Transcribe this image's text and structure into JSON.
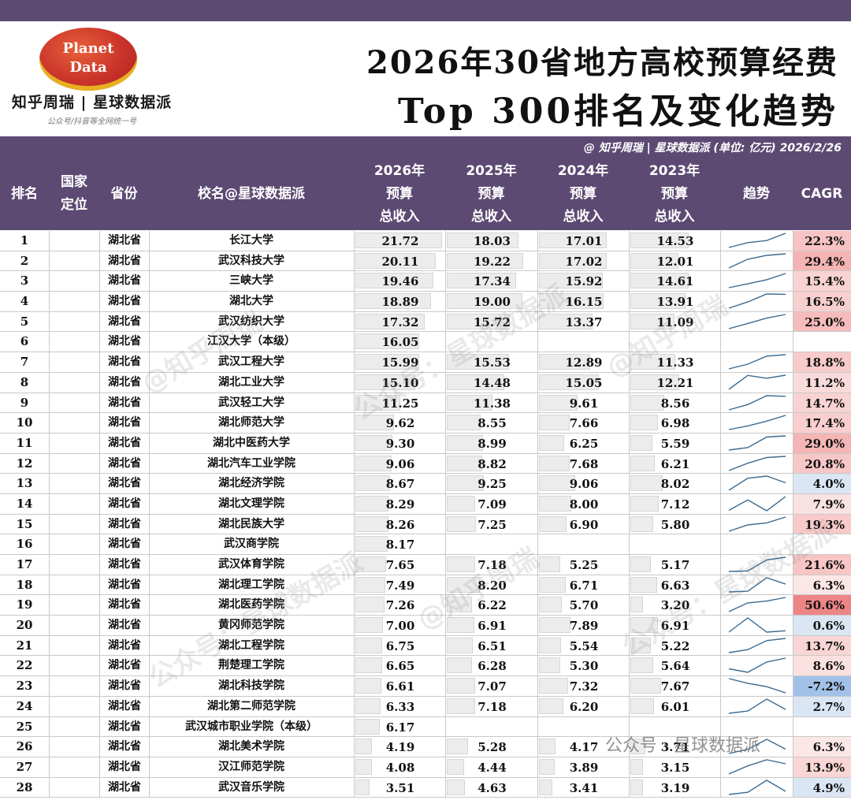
{
  "header": {
    "logo_line1": "Planet",
    "logo_line2": "Data",
    "brand": "知乎周瑞 | 星球数据派",
    "brand_sub": "公众号/抖音等全网统一号",
    "title_line1": "2026年30省地方高校预算经费",
    "title_line2": "Top 300排名及变化趋势",
    "credit": "@ 知乎周瑞 | 星球数据派 (单位: 亿元) 2026/2/26"
  },
  "columns": {
    "rank": "排名",
    "position": [
      "国家",
      "定位"
    ],
    "province": "省份",
    "name": "校名@星球数据派",
    "y2026": [
      "2026年",
      "预算",
      "总收入"
    ],
    "y2025": [
      "2025年",
      "预算",
      "总收入"
    ],
    "y2024": [
      "2024年",
      "预算",
      "总收入"
    ],
    "y2023": [
      "2023年",
      "预算",
      "总收入"
    ],
    "trend": "趋势",
    "cagr": "CAGR"
  },
  "colors": {
    "header_bg": "#5d4a73",
    "cagr_positive": "#f29a9a",
    "cagr_negative": "#8fb3e0"
  },
  "rows": [
    {
      "rank": "1",
      "province": "湖北省",
      "name": "长江大学",
      "y2026": "21.72",
      "y2025": "18.03",
      "y2024": "17.01",
      "y2023": "14.53",
      "cagr": "22.3%",
      "cagr_val": 22.3,
      "vals": [
        14.53,
        17.01,
        18.03,
        21.72
      ]
    },
    {
      "rank": "2",
      "province": "湖北省",
      "name": "武汉科技大学",
      "y2026": "20.11",
      "y2025": "19.22",
      "y2024": "17.02",
      "y2023": "12.01",
      "cagr": "29.4%",
      "cagr_val": 29.4,
      "vals": [
        12.01,
        17.02,
        19.22,
        20.11
      ]
    },
    {
      "rank": "3",
      "province": "湖北省",
      "name": "三峡大学",
      "y2026": "19.46",
      "y2025": "17.34",
      "y2024": "15.92",
      "y2023": "14.61",
      "cagr": "15.4%",
      "cagr_val": 15.4,
      "vals": [
        14.61,
        15.92,
        17.34,
        19.46
      ]
    },
    {
      "rank": "4",
      "province": "湖北省",
      "name": "湖北大学",
      "y2026": "18.89",
      "y2025": "19.00",
      "y2024": "16.15",
      "y2023": "13.91",
      "cagr": "16.5%",
      "cagr_val": 16.5,
      "vals": [
        13.91,
        16.15,
        19.0,
        18.89
      ]
    },
    {
      "rank": "5",
      "province": "湖北省",
      "name": "武汉纺织大学",
      "y2026": "17.32",
      "y2025": "15.72",
      "y2024": "13.37",
      "y2023": "11.09",
      "cagr": "25.0%",
      "cagr_val": 25.0,
      "vals": [
        11.09,
        13.37,
        15.72,
        17.32
      ]
    },
    {
      "rank": "6",
      "province": "湖北省",
      "name": "江汉大学（本级）",
      "y2026": "16.05",
      "y2025": "",
      "y2024": "",
      "y2023": "",
      "cagr": "",
      "cagr_val": null,
      "vals": []
    },
    {
      "rank": "7",
      "province": "湖北省",
      "name": "武汉工程大学",
      "y2026": "15.99",
      "y2025": "15.53",
      "y2024": "12.89",
      "y2023": "11.33",
      "cagr": "18.8%",
      "cagr_val": 18.8,
      "vals": [
        11.33,
        12.89,
        15.53,
        15.99
      ]
    },
    {
      "rank": "8",
      "province": "湖北省",
      "name": "湖北工业大学",
      "y2026": "15.10",
      "y2025": "14.48",
      "y2024": "15.05",
      "y2023": "12.21",
      "cagr": "11.2%",
      "cagr_val": 11.2,
      "vals": [
        12.21,
        15.05,
        14.48,
        15.1
      ]
    },
    {
      "rank": "9",
      "province": "湖北省",
      "name": "武汉轻工大学",
      "y2026": "11.25",
      "y2025": "11.38",
      "y2024": "9.61",
      "y2023": "8.56",
      "cagr": "14.7%",
      "cagr_val": 14.7,
      "vals": [
        8.56,
        9.61,
        11.38,
        11.25
      ]
    },
    {
      "rank": "10",
      "province": "湖北省",
      "name": "湖北师范大学",
      "y2026": "9.62",
      "y2025": "8.55",
      "y2024": "7.66",
      "y2023": "6.98",
      "cagr": "17.4%",
      "cagr_val": 17.4,
      "vals": [
        6.98,
        7.66,
        8.55,
        9.62
      ]
    },
    {
      "rank": "11",
      "province": "湖北省",
      "name": "湖北中医药大学",
      "y2026": "9.30",
      "y2025": "8.99",
      "y2024": "6.25",
      "y2023": "5.59",
      "cagr": "29.0%",
      "cagr_val": 29.0,
      "vals": [
        5.59,
        6.25,
        8.99,
        9.3
      ]
    },
    {
      "rank": "12",
      "province": "湖北省",
      "name": "湖北汽车工业学院",
      "y2026": "9.06",
      "y2025": "8.82",
      "y2024": "7.68",
      "y2023": "6.21",
      "cagr": "20.8%",
      "cagr_val": 20.8,
      "vals": [
        6.21,
        7.68,
        8.82,
        9.06
      ]
    },
    {
      "rank": "13",
      "province": "湖北省",
      "name": "湖北经济学院",
      "y2026": "8.67",
      "y2025": "9.25",
      "y2024": "9.06",
      "y2023": "8.02",
      "cagr": "4.0%",
      "cagr_val": 4.0,
      "vals": [
        8.02,
        9.06,
        9.25,
        8.67
      ]
    },
    {
      "rank": "14",
      "province": "湖北省",
      "name": "湖北文理学院",
      "y2026": "8.29",
      "y2025": "7.09",
      "y2024": "8.00",
      "y2023": "7.12",
      "cagr": "7.9%",
      "cagr_val": 7.9,
      "vals": [
        7.12,
        8.0,
        7.09,
        8.29
      ]
    },
    {
      "rank": "15",
      "province": "湖北省",
      "name": "湖北民族大学",
      "y2026": "8.26",
      "y2025": "7.25",
      "y2024": "6.90",
      "y2023": "5.80",
      "cagr": "19.3%",
      "cagr_val": 19.3,
      "vals": [
        5.8,
        6.9,
        7.25,
        8.26
      ]
    },
    {
      "rank": "16",
      "province": "湖北省",
      "name": "武汉商学院",
      "y2026": "8.17",
      "y2025": "",
      "y2024": "",
      "y2023": "",
      "cagr": "",
      "cagr_val": null,
      "vals": []
    },
    {
      "rank": "17",
      "province": "湖北省",
      "name": "武汉体育学院",
      "y2026": "7.65",
      "y2025": "7.18",
      "y2024": "5.25",
      "y2023": "5.17",
      "cagr": "21.6%",
      "cagr_val": 21.6,
      "vals": [
        5.17,
        5.25,
        7.18,
        7.65
      ]
    },
    {
      "rank": "18",
      "province": "湖北省",
      "name": "湖北理工学院",
      "y2026": "7.49",
      "y2025": "8.20",
      "y2024": "6.71",
      "y2023": "6.63",
      "cagr": "6.3%",
      "cagr_val": 6.3,
      "vals": [
        6.63,
        6.71,
        8.2,
        7.49
      ]
    },
    {
      "rank": "19",
      "province": "湖北省",
      "name": "湖北医药学院",
      "y2026": "7.26",
      "y2025": "6.22",
      "y2024": "5.70",
      "y2023": "3.20",
      "cagr": "50.6%",
      "cagr_val": 50.6,
      "vals": [
        3.2,
        5.7,
        6.22,
        7.26
      ]
    },
    {
      "rank": "20",
      "province": "湖北省",
      "name": "黄冈师范学院",
      "y2026": "7.00",
      "y2025": "6.91",
      "y2024": "7.89",
      "y2023": "6.91",
      "cagr": "0.6%",
      "cagr_val": 0.6,
      "vals": [
        6.91,
        7.89,
        6.91,
        7.0
      ]
    },
    {
      "rank": "21",
      "province": "湖北省",
      "name": "湖北工程学院",
      "y2026": "6.75",
      "y2025": "6.51",
      "y2024": "5.54",
      "y2023": "5.22",
      "cagr": "13.7%",
      "cagr_val": 13.7,
      "vals": [
        5.22,
        5.54,
        6.51,
        6.75
      ]
    },
    {
      "rank": "22",
      "province": "湖北省",
      "name": "荆楚理工学院",
      "y2026": "6.65",
      "y2025": "6.28",
      "y2024": "5.30",
      "y2023": "5.64",
      "cagr": "8.6%",
      "cagr_val": 8.6,
      "vals": [
        5.64,
        5.3,
        6.28,
        6.65
      ]
    },
    {
      "rank": "23",
      "province": "湖北省",
      "name": "湖北科技学院",
      "y2026": "6.61",
      "y2025": "7.07",
      "y2024": "7.32",
      "y2023": "7.67",
      "cagr": "-7.2%",
      "cagr_val": -7.2,
      "vals": [
        7.67,
        7.32,
        7.07,
        6.61
      ]
    },
    {
      "rank": "24",
      "province": "湖北省",
      "name": "湖北第二师范学院",
      "y2026": "6.33",
      "y2025": "7.18",
      "y2024": "6.20",
      "y2023": "6.01",
      "cagr": "2.7%",
      "cagr_val": 2.7,
      "vals": [
        6.01,
        6.2,
        7.18,
        6.33
      ]
    },
    {
      "rank": "25",
      "province": "湖北省",
      "name": "武汉城市职业学院（本级）",
      "y2026": "6.17",
      "y2025": "",
      "y2024": "",
      "y2023": "",
      "cagr": "",
      "cagr_val": null,
      "vals": []
    },
    {
      "rank": "26",
      "province": "湖北省",
      "name": "湖北美术学院",
      "y2026": "4.19",
      "y2025": "5.28",
      "y2024": "4.17",
      "y2023": "3.71",
      "cagr": "6.3%",
      "cagr_val": 6.3,
      "vals": [
        3.71,
        4.17,
        5.28,
        4.19
      ]
    },
    {
      "rank": "27",
      "province": "湖北省",
      "name": "汉江师范学院",
      "y2026": "4.08",
      "y2025": "4.44",
      "y2024": "3.89",
      "y2023": "3.15",
      "cagr": "13.9%",
      "cagr_val": 13.9,
      "vals": [
        3.15,
        3.89,
        4.44,
        4.08
      ]
    },
    {
      "rank": "28",
      "province": "湖北省",
      "name": "武汉音乐学院",
      "y2026": "3.51",
      "y2025": "4.63",
      "y2024": "3.41",
      "y2023": "3.19",
      "cagr": "4.9%",
      "cagr_val": 4.9,
      "vals": [
        3.19,
        3.41,
        4.63,
        3.51
      ]
    }
  ],
  "watermarks": [
    "@知乎周瑞",
    "公众号：星球数据派"
  ],
  "bottom_watermark": "公众号 · 星球数据派"
}
